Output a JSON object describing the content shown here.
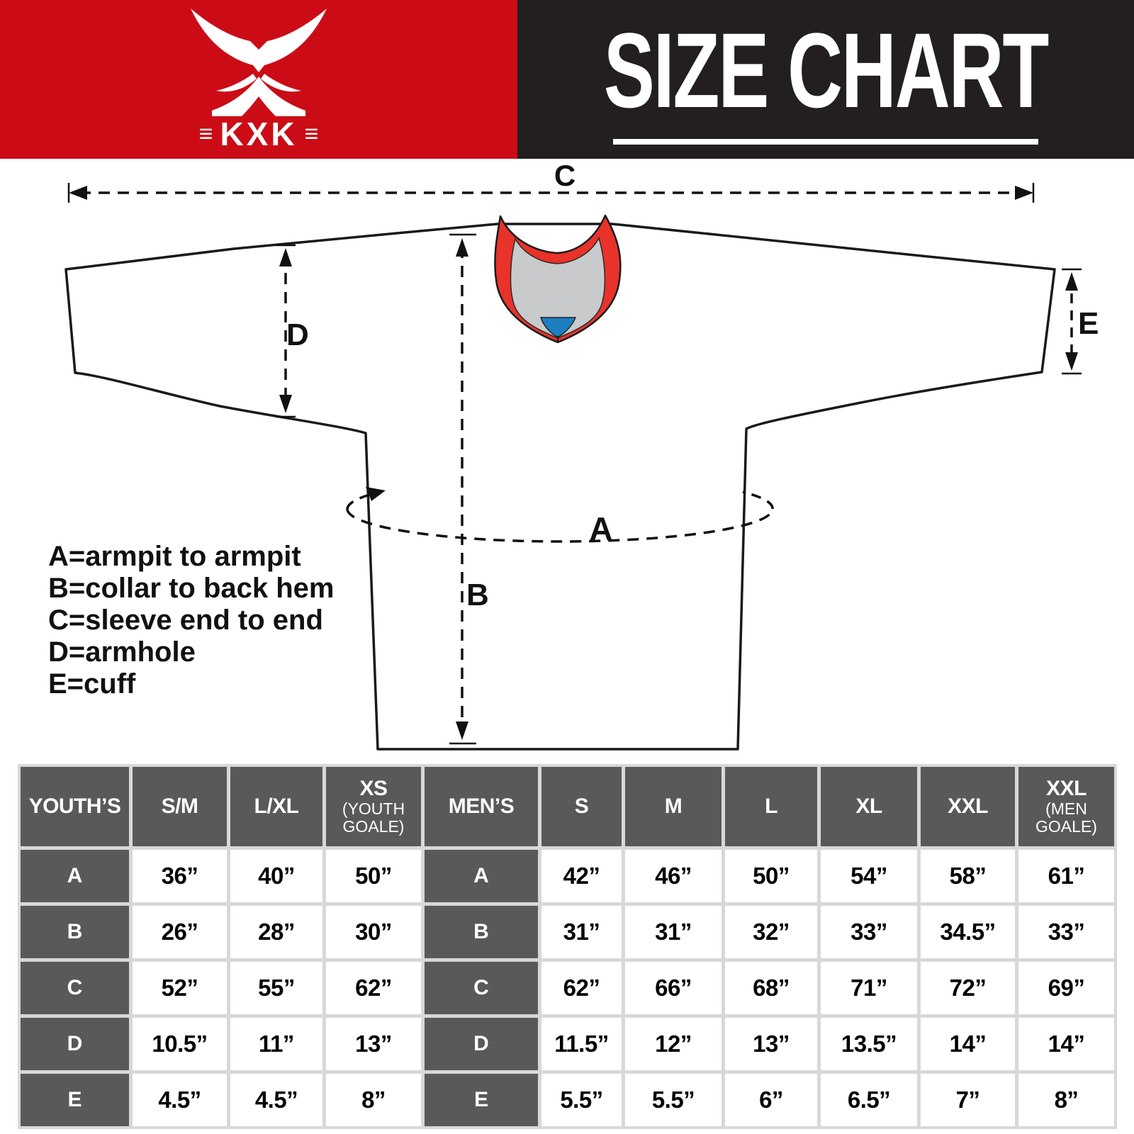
{
  "header": {
    "brand": "KXK",
    "triple_bar": "≡",
    "title": "SIZE CHART",
    "red": "#cb0c16",
    "dark": "#231f20"
  },
  "diagram": {
    "arrow_labels": {
      "A": "A",
      "B": "B",
      "C": "C",
      "D": "D",
      "E": "E"
    },
    "legend": [
      "A=armpit to armpit",
      "B=collar to back hem",
      "C=sleeve end to end",
      "D=armhole",
      "E=cuff"
    ],
    "collar_colors": {
      "red": "#e8322a",
      "gray": "#c9cacb",
      "blue": "#1d7fc1"
    }
  },
  "table": {
    "columns": [
      {
        "label": "YOUTH’S",
        "sub": ""
      },
      {
        "label": "S/M",
        "sub": ""
      },
      {
        "label": "L/XL",
        "sub": ""
      },
      {
        "label": "XS",
        "sub": "(YOUTH GOALE)"
      },
      {
        "label": "MEN’S",
        "sub": ""
      },
      {
        "label": "S",
        "sub": ""
      },
      {
        "label": "M",
        "sub": ""
      },
      {
        "label": "L",
        "sub": ""
      },
      {
        "label": "XL",
        "sub": ""
      },
      {
        "label": "XXL",
        "sub": ""
      },
      {
        "label": "XXL",
        "sub": "(MEN GOALE)"
      }
    ],
    "label_col_indexes": [
      0,
      4
    ],
    "rows": [
      {
        "cells": [
          "A",
          "36”",
          "40”",
          "50”",
          "A",
          "42”",
          "46”",
          "50”",
          "54”",
          "58”",
          "61”"
        ]
      },
      {
        "cells": [
          "B",
          "26”",
          "28”",
          "30”",
          "B",
          "31”",
          "31”",
          "32”",
          "33”",
          "34.5”",
          "33”"
        ]
      },
      {
        "cells": [
          "C",
          "52”",
          "55”",
          "62”",
          "C",
          "62”",
          "66”",
          "68”",
          "71”",
          "72”",
          "69”"
        ]
      },
      {
        "cells": [
          "D",
          "10.5”",
          "11”",
          "13”",
          "D",
          "11.5”",
          "12”",
          "13”",
          "13.5”",
          "14”",
          "14”"
        ]
      },
      {
        "cells": [
          "E",
          "4.5”",
          "4.5”",
          "8”",
          "E",
          "5.5”",
          "5.5”",
          "6”",
          "6.5”",
          "7”",
          "8”"
        ]
      }
    ]
  }
}
